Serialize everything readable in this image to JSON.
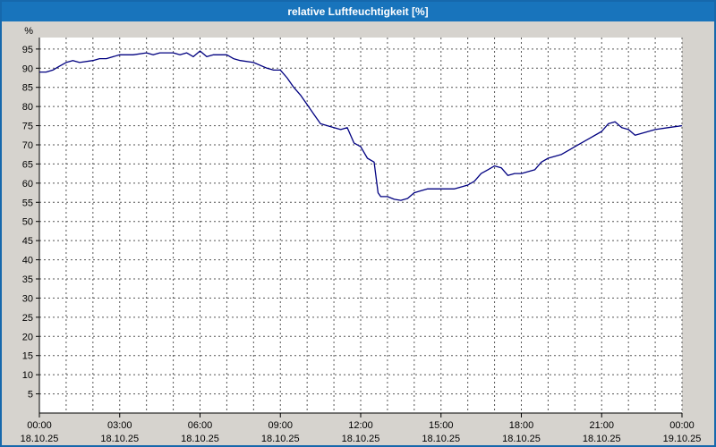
{
  "window": {
    "title": "relative Luftfeuchtigkeit [%]"
  },
  "colors": {
    "titlebar": "#1874bc",
    "frame": "#1668ac",
    "background": "#d6d3ce",
    "plot_background": "#ffffff",
    "grid": "#555555",
    "axis": "#000000",
    "line": "#000080"
  },
  "chart_data": {
    "type": "line",
    "title": "relative Luftfeuchtigkeit [%]",
    "ylabel": "%",
    "ylim": [
      0,
      98
    ],
    "yticks": [
      5,
      10,
      15,
      20,
      25,
      30,
      35,
      40,
      45,
      50,
      55,
      60,
      65,
      70,
      75,
      80,
      85,
      90,
      95
    ],
    "x_range_hours": [
      0,
      24
    ],
    "grid_interval_hours": 1,
    "xticks_hours": [
      0,
      3,
      6,
      9,
      12,
      15,
      18,
      21,
      24
    ],
    "x_tick_labels": [
      "00:00",
      "03:00",
      "06:00",
      "09:00",
      "12:00",
      "15:00",
      "18:00",
      "21:00",
      "00:00"
    ],
    "x_date_labels": [
      "18.10.25",
      "18.10.25",
      "18.10.25",
      "18.10.25",
      "18.10.25",
      "18.10.25",
      "18.10.25",
      "18.10.25",
      "19.10.25"
    ],
    "legend": "none",
    "grid": "dashed",
    "x": [
      0,
      0.25,
      0.5,
      0.75,
      1,
      1.25,
      1.5,
      2,
      2.25,
      2.5,
      3,
      3.5,
      4,
      4.25,
      4.5,
      5,
      5.25,
      5.5,
      5.75,
      6,
      6.25,
      6.5,
      7,
      7.25,
      7.5,
      8,
      8.5,
      8.75,
      9,
      9.25,
      9.5,
      9.75,
      10,
      10.25,
      10.5,
      11,
      11.25,
      11.5,
      11.75,
      12,
      12.25,
      12.5,
      12.65,
      12.75,
      13,
      13.25,
      13.5,
      13.75,
      14,
      14.25,
      14.5,
      15,
      15.25,
      15.5,
      16,
      16.25,
      16.5,
      16.75,
      17,
      17.25,
      17.5,
      17.75,
      18,
      18.25,
      18.5,
      18.75,
      19,
      19.5,
      20,
      20.5,
      21,
      21.25,
      21.5,
      21.75,
      22,
      22.25,
      22.5,
      23,
      23.5,
      24
    ],
    "y": [
      89,
      89,
      89.5,
      90.5,
      91.5,
      92,
      91.5,
      92,
      92.5,
      92.5,
      93.5,
      93.5,
      94,
      93.5,
      94,
      94,
      93.5,
      94,
      93,
      94.5,
      93,
      93.5,
      93.5,
      92.5,
      92,
      91.5,
      90,
      89.5,
      89.5,
      87.5,
      85,
      83,
      80.5,
      78,
      75.5,
      74.5,
      74,
      74.5,
      70.5,
      69.5,
      66.5,
      65.5,
      57.5,
      56.5,
      56.5,
      55.8,
      55.5,
      56,
      57.5,
      58,
      58.5,
      58.5,
      58.5,
      58.5,
      59.5,
      60.5,
      62.5,
      63.5,
      64.5,
      64,
      62,
      62.5,
      62.5,
      63,
      63.5,
      65.5,
      66.5,
      67.5,
      69.5,
      71.5,
      73.5,
      75.5,
      76,
      74.5,
      74,
      72.5,
      73,
      74,
      74.5,
      75
    ]
  }
}
